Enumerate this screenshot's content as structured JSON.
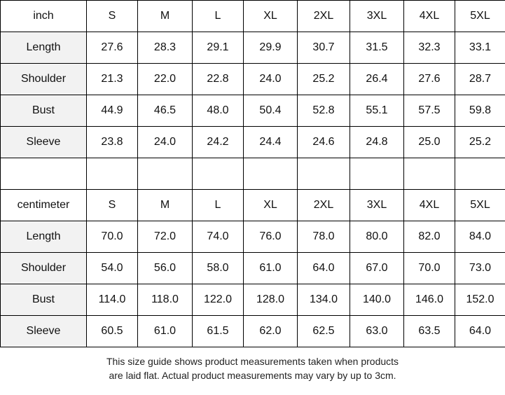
{
  "tables": [
    {
      "header": [
        "inch",
        "S",
        "M",
        "L",
        "XL",
        "2XL",
        "3XL",
        "4XL",
        "5XL"
      ],
      "rows": [
        [
          "Length",
          "27.6",
          "28.3",
          "29.1",
          "29.9",
          "30.7",
          "31.5",
          "32.3",
          "33.1"
        ],
        [
          "Shoulder",
          "21.3",
          "22.0",
          "22.8",
          "24.0",
          "25.2",
          "26.4",
          "27.6",
          "28.7"
        ],
        [
          "Bust",
          "44.9",
          "46.5",
          "48.0",
          "50.4",
          "52.8",
          "55.1",
          "57.5",
          "59.8"
        ],
        [
          "Sleeve",
          "23.8",
          "24.0",
          "24.2",
          "24.4",
          "24.6",
          "24.8",
          "25.0",
          "25.2"
        ]
      ]
    },
    {
      "header": [
        "centimeter",
        "S",
        "M",
        "L",
        "XL",
        "2XL",
        "3XL",
        "4XL",
        "5XL"
      ],
      "rows": [
        [
          "Length",
          "70.0",
          "72.0",
          "74.0",
          "76.0",
          "78.0",
          "80.0",
          "82.0",
          "84.0"
        ],
        [
          "Shoulder",
          "54.0",
          "56.0",
          "58.0",
          "61.0",
          "64.0",
          "67.0",
          "70.0",
          "73.0"
        ],
        [
          "Bust",
          "114.0",
          "118.0",
          "122.0",
          "128.0",
          "134.0",
          "140.0",
          "146.0",
          "152.0"
        ],
        [
          "Sleeve",
          "60.5",
          "61.0",
          "61.5",
          "62.0",
          "62.5",
          "63.0",
          "63.5",
          "64.0"
        ]
      ]
    }
  ],
  "note": [
    "This size guide shows product measurements taken when products",
    "are laid flat. Actual product measurements may vary by up to 3cm."
  ]
}
